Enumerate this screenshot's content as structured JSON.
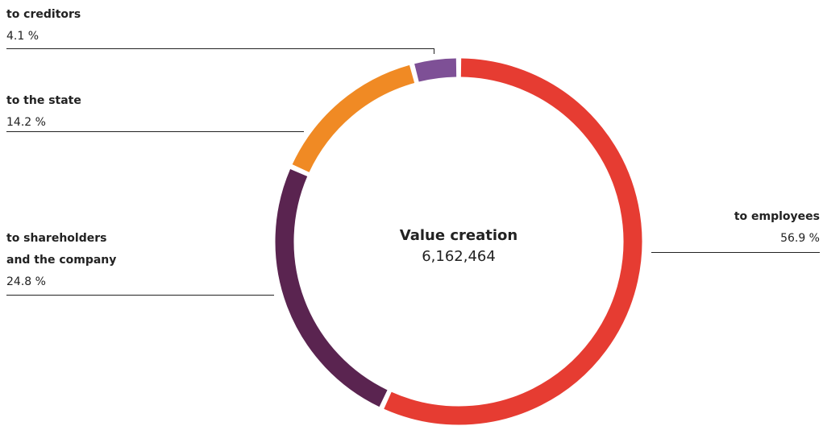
{
  "chart_data": {
    "type": "donut",
    "center_label": "Value creation",
    "center_value": "6,162,464",
    "categories": [
      "to employees",
      "to shareholders\nand the company",
      "to the state",
      "to creditors"
    ],
    "values": [
      56.9,
      24.8,
      14.2,
      4.1
    ],
    "value_labels": [
      "56.9 %",
      "24.8 %",
      "14.2 %",
      "4.1 %"
    ],
    "colors": [
      "#e63c32",
      "#5a2450",
      "#f08a24",
      "#7e5096"
    ]
  }
}
